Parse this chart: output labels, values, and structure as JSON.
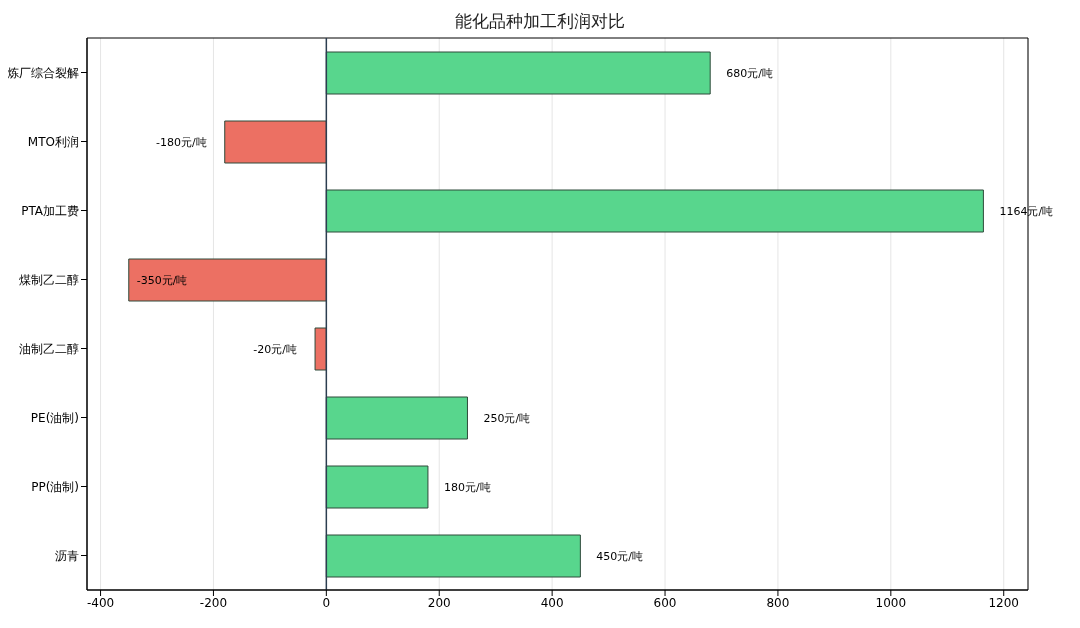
{
  "chart_data": {
    "type": "bar",
    "orientation": "horizontal",
    "title": "能化品种加工利润对比",
    "categories": [
      "炼厂综合裂解",
      "MTO利润",
      "PTA加工费",
      "煤制乙二醇",
      "油制乙二醇",
      "PE(油制)",
      "PP(油制)",
      "沥青"
    ],
    "values": [
      680,
      -180,
      1164,
      -350,
      -20,
      250,
      180,
      450
    ],
    "colors": [
      "#58d68d",
      "#ec7063",
      "#58d68d",
      "#ec7063",
      "#ec7063",
      "#58d68d",
      "#58d68d",
      "#58d68d"
    ],
    "value_labels": [
      "680元/吨",
      "-180元/吨",
      "1164元/吨",
      "-350元/吨",
      "-20元/吨",
      "250元/吨",
      "180元/吨",
      "450元/吨"
    ],
    "xlim": [
      -424,
      1243
    ],
    "xticks": [
      -400,
      -200,
      0,
      200,
      400,
      600,
      800,
      1000,
      1200
    ],
    "ref_lines": [
      {
        "axis": "x",
        "value": 0,
        "color": "#2c3e50"
      }
    ],
    "grid": "x"
  }
}
